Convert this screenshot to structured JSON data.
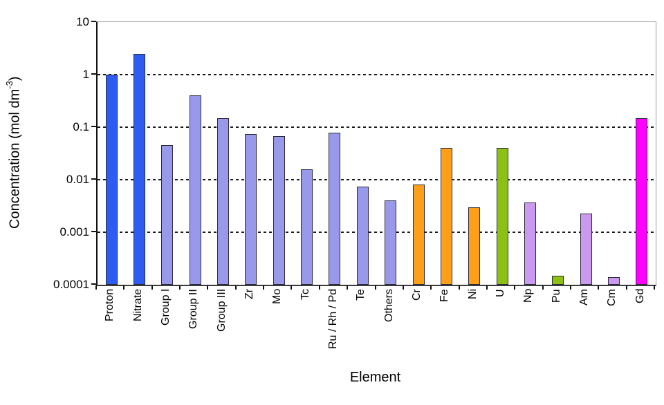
{
  "axes": {
    "x_title": "Element",
    "y_title_prefix": "Concentration (mol dm",
    "y_title_sup": "-3",
    "y_title_suffix": ")"
  },
  "chart_data": {
    "type": "bar",
    "title": "",
    "xlabel": "Element",
    "ylabel": "Concentration (mol dm^-3)",
    "y_scale": "log",
    "ylim": [
      0.0001,
      10
    ],
    "grid": true,
    "legend_position": "none",
    "ytick_labels": [
      "10",
      "1",
      "0.1",
      "0.01",
      "0.001",
      "0.0001"
    ],
    "ytick_values": [
      10,
      1,
      0.1,
      0.01,
      0.001,
      0.0001
    ],
    "categories": [
      "Proton",
      "Nitrate",
      "Group I",
      "Group II",
      "Group III",
      "Zr",
      "Mo",
      "Tc",
      "Ru / Rh / Pd",
      "Te",
      "Others",
      "Cr",
      "Fe",
      "Ni",
      "U",
      "Np",
      "Pu",
      "Am",
      "Cm",
      "Gd"
    ],
    "values": [
      1.0,
      2.5,
      0.045,
      0.4,
      0.15,
      0.075,
      0.068,
      0.016,
      0.078,
      0.0075,
      0.004,
      0.008,
      0.04,
      0.003,
      0.04,
      0.0037,
      0.00015,
      0.0023,
      0.00014,
      0.15
    ],
    "bar_colors": [
      "#2E5CF2",
      "#2E5CF2",
      "#9999EC",
      "#9999EC",
      "#9999EC",
      "#9999EC",
      "#9999EC",
      "#9999EC",
      "#9999EC",
      "#9999EC",
      "#9999EC",
      "#FF9E17",
      "#FF9E17",
      "#FF9E17",
      "#8CC114",
      "#CC99F0",
      "#8CC114",
      "#CC99F0",
      "#CC99F0",
      "#FF00FF"
    ],
    "color_groups": {
      "blue": "#2E5CF2",
      "periwinkle": "#9999EC",
      "orange": "#FF9E17",
      "green": "#8CC114",
      "light_purple": "#CC99F0",
      "magenta": "#FF00FF"
    }
  }
}
